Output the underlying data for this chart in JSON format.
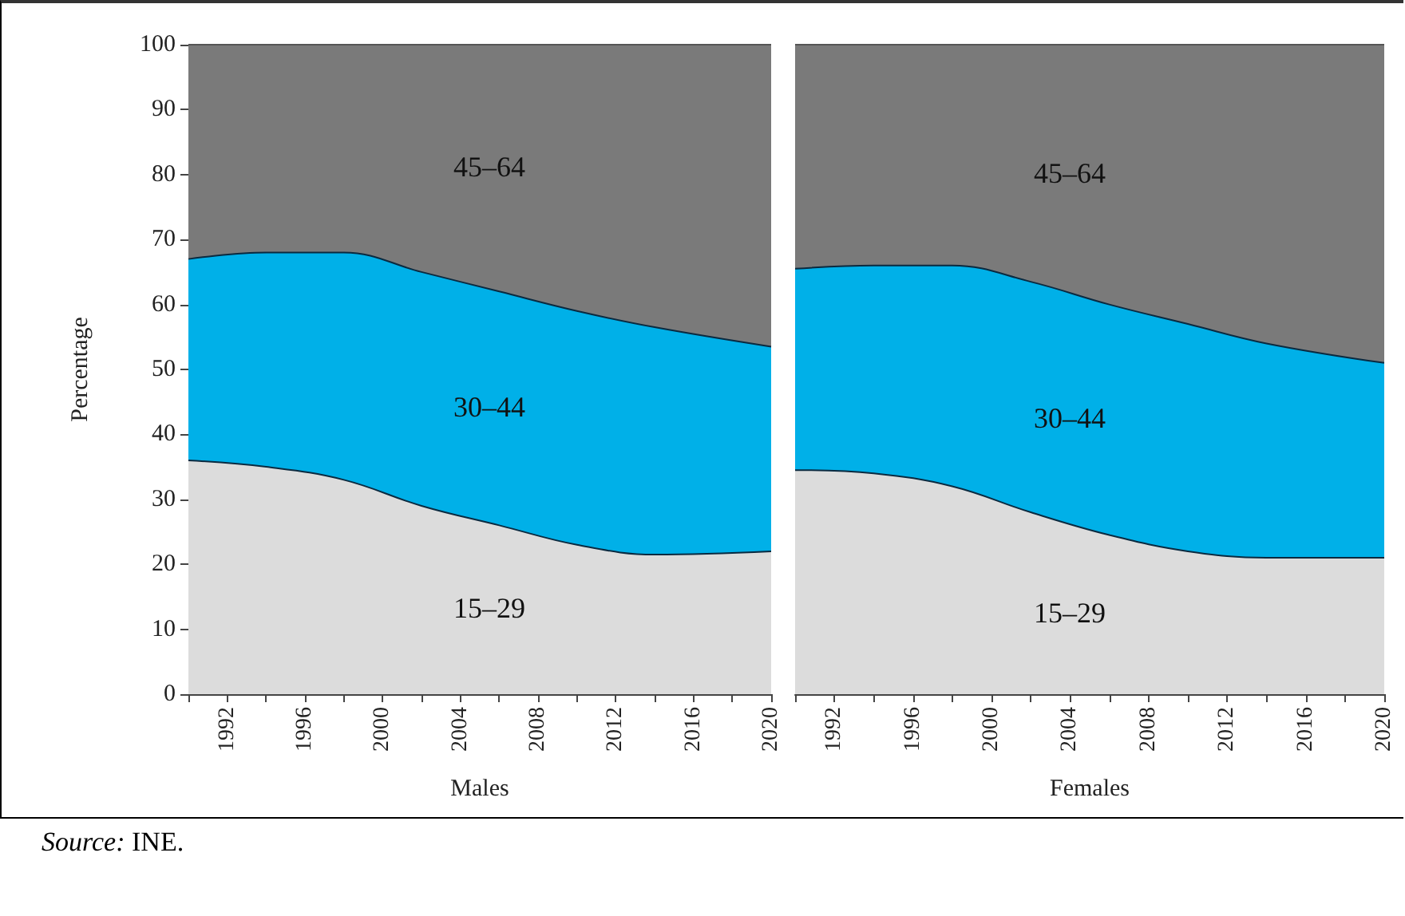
{
  "chart_data": [
    {
      "type": "area",
      "stacked": true,
      "xlabel": "Males",
      "ylabel": "Percentage",
      "x": [
        1990,
        1994,
        1998,
        2002,
        2006,
        2010,
        2014,
        2020
      ],
      "series": [
        {
          "name": "15–29",
          "color": "#dcdcdc",
          "values": [
            36,
            35,
            33,
            29,
            26,
            23,
            21.5,
            22
          ]
        },
        {
          "name": "30–44",
          "color": "#00b0e8",
          "values": [
            31,
            33,
            35,
            36,
            36,
            36,
            35,
            31.5
          ]
        },
        {
          "name": "45–64",
          "color": "#7a7a7a",
          "values": [
            33,
            32,
            32,
            35,
            38,
            41,
            43.5,
            46.5
          ]
        }
      ],
      "xlim": [
        1990,
        2020
      ],
      "xticks": [
        {
          "value": 1990,
          "label": null
        },
        1992,
        {
          "value": 1994,
          "label": null
        },
        1996,
        {
          "value": 1998,
          "label": null
        },
        2000,
        {
          "value": 2002,
          "label": null
        },
        2004,
        {
          "value": 2006,
          "label": null
        },
        2008,
        {
          "value": 2010,
          "label": null
        },
        2012,
        {
          "value": 2014,
          "label": null
        },
        2016,
        {
          "value": 2018,
          "label": null
        },
        2020
      ],
      "ylim": [
        0,
        100
      ],
      "yticks": [
        0,
        10,
        20,
        30,
        40,
        50,
        60,
        70,
        80,
        90,
        100
      ],
      "grid": false,
      "legend": false,
      "annotations": [
        "Source: INE."
      ]
    },
    {
      "type": "area",
      "stacked": true,
      "xlabel": "Females",
      "x": [
        1990,
        1994,
        1998,
        2002,
        2006,
        2010,
        2014,
        2020
      ],
      "series": [
        {
          "name": "15–29",
          "color": "#dcdcdc",
          "values": [
            34.5,
            34,
            32,
            28,
            24.5,
            22,
            21,
            21
          ]
        },
        {
          "name": "30–44",
          "color": "#00b0e8",
          "values": [
            31,
            32,
            34,
            35.5,
            35.5,
            35,
            33,
            30
          ]
        },
        {
          "name": "45–64",
          "color": "#7a7a7a",
          "values": [
            34.5,
            34,
            34,
            36.5,
            40,
            43,
            46,
            49
          ]
        }
      ],
      "xlim": [
        1990,
        2020
      ],
      "xticks": [
        {
          "value": 1990,
          "label": null
        },
        1992,
        {
          "value": 1994,
          "label": null
        },
        1996,
        {
          "value": 1998,
          "label": null
        },
        2000,
        {
          "value": 2002,
          "label": null
        },
        2004,
        {
          "value": 2006,
          "label": null
        },
        2008,
        {
          "value": 2010,
          "label": null
        },
        2012,
        {
          "value": 2014,
          "label": null
        },
        2016,
        {
          "value": 2018,
          "label": null
        },
        2020
      ],
      "ylim": [
        0,
        100
      ],
      "yticks": [
        0,
        10,
        20,
        30,
        40,
        50,
        60,
        70,
        80,
        90,
        100
      ],
      "grid": false,
      "legend": false,
      "tick_labels": "x"
    }
  ]
}
